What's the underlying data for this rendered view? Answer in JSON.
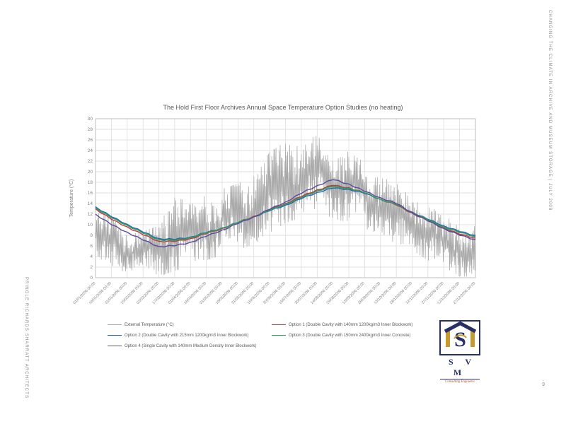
{
  "page": {
    "side_text_right": "CHANGING THE CLIMATE IN ARCHIVE AND MUSEUM STORAGE | JULY 2008",
    "side_text_left": "PRINGLE RICHARDS SHARRATT ARCHITECTS",
    "page_number": "9"
  },
  "logo": {
    "letters": "S V M",
    "tagline": "Consulting Engineers",
    "navy": "#272f66",
    "gold": "#c59b2f"
  },
  "chart_data": {
    "type": "line",
    "title": "The Hold First Floor Archives Annual Space Temperature Option Studies (no heating)",
    "xlabel": "",
    "ylabel": "Temperature (°C)",
    "ylim": [
      0,
      30
    ],
    "ytick_step": 2,
    "grid": true,
    "legend_position": "bottom",
    "tick_interval_days": 15,
    "x_tick_labels": [
      "01/01/2006 00:00",
      "16/01/2006 00:00",
      "31/01/2006 00:00",
      "15/02/2006 00:00",
      "02/03/2006 00:00",
      "17/03/2006 00:00",
      "01/04/2006 00:00",
      "16/04/2006 00:00",
      "01/05/2006 00:00",
      "16/05/2006 00:00",
      "31/05/2006 00:00",
      "15/06/2006 00:00",
      "30/06/2006 00:00",
      "15/07/2006 00:00",
      "30/07/2006 00:00",
      "14/08/2006 00:00",
      "29/08/2006 00:00",
      "13/09/2006 00:00",
      "28/09/2006 00:00",
      "13/10/2006 00:00",
      "28/10/2006 00:00",
      "12/11/2006 00:00",
      "27/11/2006 00:00",
      "12/12/2006 00:00",
      "27/12/2006 00:00"
    ],
    "series": [
      {
        "name": "External Temperature (°C)",
        "color": "#a8a8a8",
        "type": "noisy-hourly",
        "envelope": {
          "days": [
            0,
            15,
            30,
            45,
            60,
            75,
            90,
            105,
            120,
            135,
            150,
            165,
            180,
            195,
            210,
            225,
            240,
            255,
            270,
            285,
            300,
            315,
            330,
            345,
            360
          ],
          "min": [
            3,
            1,
            1,
            0,
            0,
            1,
            2,
            3,
            4,
            5,
            6,
            8,
            10,
            11,
            12,
            11,
            10,
            9,
            8,
            6,
            5,
            3,
            1,
            0,
            0
          ],
          "max": [
            13,
            12,
            10,
            9,
            10,
            16,
            14,
            16,
            17,
            18,
            20,
            24,
            26,
            28,
            27,
            25,
            24,
            22,
            20,
            18,
            16,
            14,
            12,
            11,
            10
          ]
        }
      },
      {
        "name": "Option 1 (Double Cavity with 140mm 1200kg/m3 Inner Blockwork)",
        "color": "#c0393b",
        "values": [
          13.0,
          11.0,
          9.6,
          8.1,
          6.9,
          6.8,
          7.4,
          8.3,
          9.3,
          10.4,
          11.6,
          12.8,
          14.0,
          15.3,
          16.6,
          17.4,
          17.0,
          16.0,
          14.8,
          13.7,
          12.2,
          10.7,
          9.4,
          8.2,
          7.5
        ]
      },
      {
        "name": "Option 2 (Double Cavity with 215mm 1200kg/m3 Inner Blockwork)",
        "color": "#2268b2",
        "values": [
          13.4,
          11.5,
          10.1,
          8.6,
          7.4,
          7.2,
          7.7,
          8.5,
          9.4,
          10.4,
          11.5,
          12.6,
          13.7,
          14.9,
          16.1,
          16.9,
          16.7,
          15.9,
          14.8,
          13.8,
          12.4,
          11.0,
          9.8,
          8.7,
          8.0
        ]
      },
      {
        "name": "Option 3 (Double Cavity with 150mm 2400kg/m3 Inner Concrete)",
        "color": "#2e9e5e",
        "values": [
          13.2,
          11.3,
          9.9,
          8.4,
          7.2,
          7.0,
          7.6,
          8.4,
          9.4,
          10.4,
          11.5,
          12.7,
          13.9,
          15.1,
          16.4,
          17.2,
          16.9,
          16.0,
          14.8,
          13.8,
          12.3,
          10.9,
          9.6,
          8.5,
          7.8
        ]
      },
      {
        "name": "Option 4 (Single Cavity with 140mm Medium Density Inner Blockwork)",
        "color": "#5b4a9e",
        "values": [
          12.0,
          10.0,
          8.6,
          7.1,
          5.9,
          6.0,
          6.7,
          7.8,
          9.0,
          10.2,
          11.5,
          12.9,
          14.3,
          15.9,
          17.4,
          18.5,
          17.7,
          16.3,
          15.1,
          14.0,
          12.3,
          10.7,
          9.3,
          8.0,
          7.2
        ]
      }
    ]
  }
}
